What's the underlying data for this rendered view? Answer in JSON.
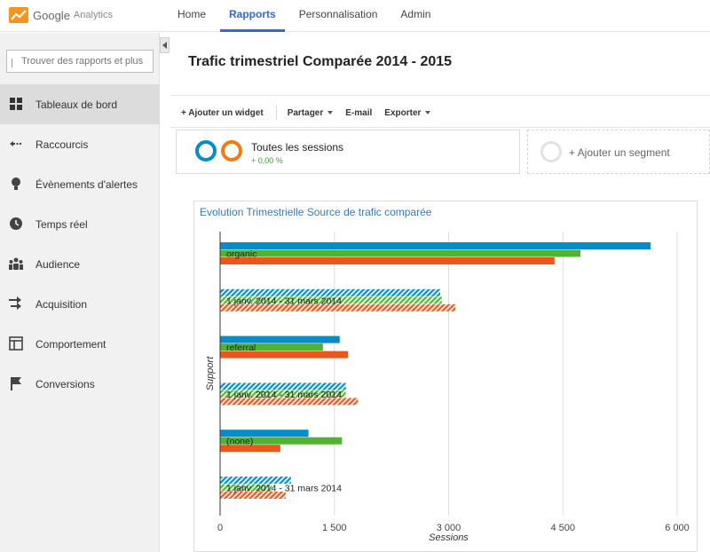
{
  "app": {
    "logo_text_a": "Google",
    "logo_text_b": "Analytics"
  },
  "nav": {
    "items": [
      {
        "label": "Home",
        "active": false
      },
      {
        "label": "Rapports",
        "active": true
      },
      {
        "label": "Personnalisation",
        "active": false
      },
      {
        "label": "Admin",
        "active": false
      }
    ]
  },
  "sidebar": {
    "search_placeholder": "Trouver des rapports et plus",
    "items": [
      {
        "label": "Tableaux de bord",
        "icon": "grid-icon",
        "active": true
      },
      {
        "label": "Raccourcis",
        "icon": "shortcut-arrow-icon",
        "active": false
      },
      {
        "label": "Évènements d'alertes",
        "icon": "lightbulb-icon",
        "active": false
      },
      {
        "label": "Temps réel",
        "icon": "clock-icon",
        "active": false
      },
      {
        "label": "Audience",
        "icon": "people-icon",
        "active": false
      },
      {
        "label": "Acquisition",
        "icon": "acquisition-arrows-icon",
        "active": false
      },
      {
        "label": "Comportement",
        "icon": "layout-icon",
        "active": false
      },
      {
        "label": "Conversions",
        "icon": "flag-icon",
        "active": false
      }
    ]
  },
  "main": {
    "title": "Trafic trimestriel Comparée 2014 - 2015",
    "toolbar": {
      "add_widget": "+ Ajouter un widget",
      "share": "Partager",
      "email": "E-mail",
      "export": "Exporter"
    },
    "segment": {
      "title": "Toutes les sessions",
      "subtitle": "+ 0,00 %",
      "ring_colors": [
        "#058dc7",
        "#ed7e17"
      ]
    },
    "add_segment": "+ Ajouter un segment"
  },
  "colors": {
    "blue": "#058dc7",
    "green": "#50b432",
    "orange": "#ed561b",
    "accent": "#3367d6"
  },
  "chart_data": {
    "type": "bar",
    "orientation": "horizontal",
    "title": "Evolution Trimestrielle Source de trafic comparée",
    "xlabel": "Sessions",
    "ylabel": "Support",
    "xlim": [
      0,
      6000
    ],
    "xticks": [
      0,
      1500,
      3000,
      4500,
      6000
    ],
    "xtick_labels": [
      "0",
      "1 500",
      "3 000",
      "4 500",
      "6 000"
    ],
    "grid": true,
    "groups": [
      {
        "label": "organic",
        "values": [
          5650,
          4730,
          4390
        ],
        "comparison": false
      },
      {
        "label": "1 janv. 2014 - 31 mars 2014",
        "values": [
          2890,
          2910,
          3090
        ],
        "comparison": true
      },
      {
        "label": "referral",
        "values": [
          1570,
          1350,
          1680
        ],
        "comparison": false
      },
      {
        "label": "1 janv. 2014 - 31 mars 2014",
        "values": [
          1650,
          1650,
          1810
        ],
        "comparison": true
      },
      {
        "label": "(none)",
        "values": [
          1160,
          1600,
          790
        ],
        "comparison": false
      },
      {
        "label": "1 janv. 2014 - 31 mars 2014",
        "values": [
          930,
          680,
          860
        ],
        "comparison": true
      }
    ]
  }
}
